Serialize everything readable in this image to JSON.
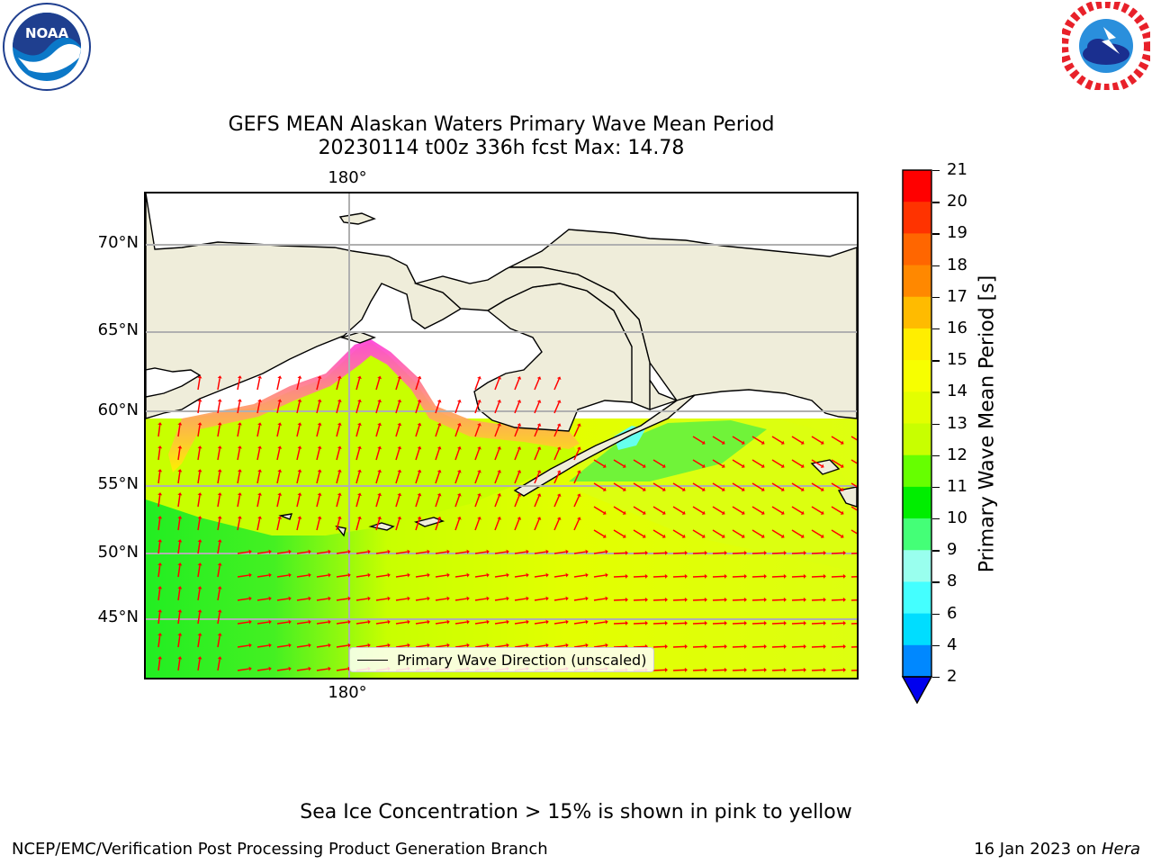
{
  "header": {
    "title_line1": "GEFS MEAN Alaskan Waters Primary Wave Mean Period",
    "title_line2": "20230114 t00z 336h fcst   Max: 14.78"
  },
  "logos": {
    "left": "noaa-logo",
    "right": "national-weather-service-logo"
  },
  "map": {
    "lon_label_top": "180°",
    "lon_label_bottom": "180°",
    "lat_labels": [
      "70°N",
      "65°N",
      "60°N",
      "55°N",
      "50°N",
      "45°N"
    ],
    "legend_label": "Primary Wave Direction (unscaled)",
    "colors": {
      "land": "#efedda",
      "coast": "#000000",
      "grid": "#b0b0b0",
      "arrow": "#ff0000",
      "sea_ice_start": "#ff44dd",
      "sea_ice_end": "#ffee00"
    }
  },
  "colorbar": {
    "label": "Primary Wave Mean Period [s]",
    "ticks": [
      "21",
      "20",
      "19",
      "18",
      "17",
      "16",
      "15",
      "14",
      "13",
      "12",
      "11",
      "10",
      "9",
      "8",
      "6",
      "4",
      "2"
    ],
    "colors": [
      "#ff0000",
      "#ff3300",
      "#ff6600",
      "#ff8800",
      "#ffbb00",
      "#ffee00",
      "#f7ff00",
      "#e3ff00",
      "#c8ff00",
      "#66ff00",
      "#00ee00",
      "#44ff77",
      "#99ffee",
      "#44ffff",
      "#00ddff",
      "#0088ff"
    ],
    "extend_color": "#0000ee"
  },
  "notes": {
    "sea_ice": "Sea Ice Concentration > 15% is shown in pink to yellow"
  },
  "footer": {
    "left": "NCEP/EMC/Verification Post Processing Product Generation Branch",
    "right_prefix": "16 Jan 2023 on ",
    "right_machine": "Hera"
  }
}
